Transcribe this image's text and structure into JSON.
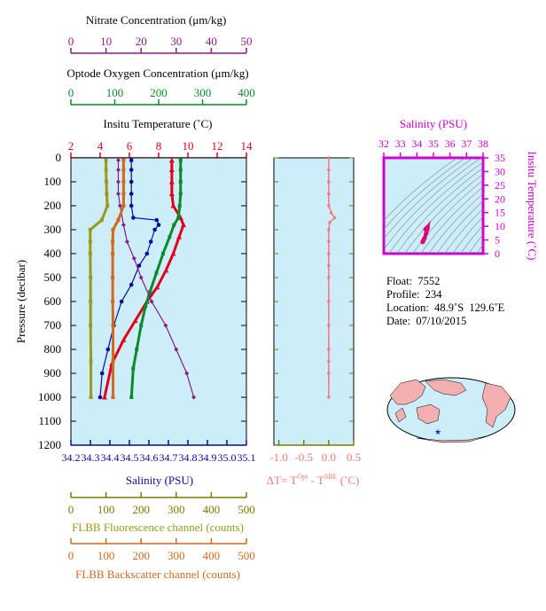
{
  "colors": {
    "nitrate": "#8b1a8b",
    "oxygen": "#0a8a2a",
    "temperature": "#e0001a",
    "salinity": "#0a0aa0",
    "fluorescence": "#9a9a1a",
    "backscatter": "#d2691e",
    "delta_t": "#f07878",
    "ts_axis": "#d000d0",
    "panel_bg": "#cdeef8",
    "axis_olive": "#7a7a00"
  },
  "axes": {
    "nitrate": {
      "label": "Nitrate Concentration (μm/kg)",
      "ticks": [
        "0",
        "10",
        "20",
        "30",
        "40",
        "50"
      ]
    },
    "oxygen": {
      "label": "Optode Oxygen Concentration (μm/kg)",
      "ticks": [
        "0",
        "100",
        "200",
        "300",
        "400"
      ]
    },
    "temperature": {
      "label": "Insitu Temperature (˚C)",
      "ticks": [
        "2",
        "4",
        "6",
        "8",
        "10",
        "12",
        "14"
      ]
    },
    "pressure": {
      "label": "Pressure (decibar)",
      "ticks": [
        "0",
        "100",
        "200",
        "300",
        "400",
        "500",
        "600",
        "700",
        "800",
        "900",
        "1000",
        "1100",
        "1200"
      ]
    },
    "salinity": {
      "label": "Salinity (PSU)",
      "ticks": [
        "34.2",
        "34.3",
        "34.4",
        "34.5",
        "34.6",
        "34.7",
        "34.8",
        "34.9",
        "35.0",
        "35.1"
      ]
    },
    "fluorescence": {
      "label": "FLBB Fluorescence channel (counts)",
      "ticks": [
        "0",
        "100",
        "200",
        "300",
        "400",
        "500"
      ]
    },
    "backscatter": {
      "label": "FLBB Backscatter channel (counts)",
      "ticks": [
        "0",
        "100",
        "200",
        "300",
        "400",
        "500"
      ]
    },
    "delta_t": {
      "label_main": "ΔT= T",
      "label_sup1": "Opt",
      "label_mid": " - T",
      "label_sup2": "SBE",
      "label_end": " (˚C)",
      "ticks": [
        "-1.0",
        "-0.5",
        "0.0",
        "0.5"
      ]
    },
    "ts_salinity": {
      "label": "Salinity (PSU)",
      "ticks": [
        "32",
        "33",
        "34",
        "35",
        "36",
        "37",
        "38"
      ]
    },
    "ts_temperature": {
      "label": "Insitu Temperature (˚C)",
      "ticks": [
        "0",
        "5",
        "10",
        "15",
        "20",
        "25",
        "30",
        "35"
      ]
    }
  },
  "info": {
    "float": "Float:  7552",
    "profile": "Profile:  234",
    "location": "Location:  48.9˚S  129.6˚E",
    "date": "Date:  07/10/2015"
  },
  "chart_data": {
    "type": "line",
    "y_name": "pressure",
    "ylim": [
      0,
      1200
    ],
    "series": [
      {
        "name": "Insitu Temperature",
        "xlim": [
          2,
          14
        ],
        "x": [
          8.9,
          8.9,
          8.9,
          8.9,
          9.0,
          9.5,
          9.7,
          9.4,
          9.0,
          8.5,
          7.9,
          7.2,
          6.4,
          5.6,
          4.8,
          4.3
        ],
        "p": [
          10,
          50,
          100,
          150,
          200,
          250,
          280,
          330,
          400,
          470,
          540,
          600,
          680,
          760,
          860,
          1000
        ]
      },
      {
        "name": "Salinity",
        "xlim": [
          34.2,
          35.1
        ],
        "x": [
          34.51,
          34.51,
          34.51,
          34.51,
          34.51,
          34.52,
          34.64,
          34.65,
          34.63,
          34.61,
          34.59,
          34.55,
          34.51,
          34.46,
          34.42,
          34.39,
          34.36,
          34.35
        ],
        "p": [
          10,
          50,
          100,
          150,
          200,
          250,
          260,
          280,
          300,
          350,
          400,
          450,
          530,
          600,
          700,
          800,
          900,
          1000
        ]
      },
      {
        "name": "Oxygen",
        "xlim": [
          0,
          400
        ],
        "x": [
          250,
          250,
          250,
          250,
          248,
          245,
          235,
          225,
          210,
          195,
          180,
          170,
          160,
          150,
          142,
          138
        ],
        "p": [
          10,
          50,
          100,
          150,
          200,
          250,
          280,
          330,
          400,
          480,
          560,
          620,
          700,
          800,
          880,
          1000
        ]
      },
      {
        "name": "Nitrate",
        "xlim": [
          0,
          50
        ],
        "x": [
          13.5,
          13.5,
          13.5,
          13.5,
          14,
          15,
          16,
          18,
          20,
          23,
          27,
          30,
          33,
          35
        ],
        "p": [
          10,
          50,
          100,
          150,
          200,
          280,
          350,
          420,
          500,
          600,
          700,
          800,
          900,
          1000
        ]
      },
      {
        "name": "Fluorescence",
        "xlim": [
          0,
          500
        ],
        "x": [
          100,
          100,
          101,
          102,
          104,
          88,
          55,
          55,
          55,
          56,
          56,
          56,
          57,
          57
        ],
        "p": [
          10,
          50,
          100,
          150,
          200,
          260,
          300,
          350,
          400,
          500,
          600,
          700,
          850,
          1000
        ]
      },
      {
        "name": "Backscatter",
        "xlim": [
          0,
          500
        ],
        "x": [
          150,
          150,
          150,
          150,
          150,
          135,
          120,
          119,
          119,
          119,
          119,
          120,
          120,
          120
        ],
        "p": [
          10,
          50,
          100,
          150,
          200,
          260,
          300,
          350,
          400,
          500,
          600,
          700,
          850,
          1000
        ]
      },
      {
        "name": "Delta T",
        "xlim": [
          -1.1,
          0.5
        ],
        "x": [
          0,
          0,
          0,
          0,
          0,
          0.05,
          0.12,
          0.02,
          0,
          0,
          0,
          0,
          0,
          0,
          0,
          0,
          0,
          0,
          0
        ],
        "p": [
          0,
          50,
          100,
          150,
          200,
          230,
          250,
          270,
          300,
          350,
          400,
          450,
          500,
          600,
          700,
          800,
          850,
          900,
          1000
        ]
      }
    ],
    "ts_diagram": {
      "type": "scatter",
      "xlim": [
        32,
        38
      ],
      "ylim": [
        0,
        35
      ],
      "salinity": [
        34.35,
        34.39,
        34.46,
        34.55,
        34.63,
        34.65,
        34.61,
        34.52
      ],
      "temperature": [
        4.3,
        4.8,
        5.6,
        7.2,
        9.0,
        9.7,
        9.4,
        8.9
      ]
    }
  }
}
